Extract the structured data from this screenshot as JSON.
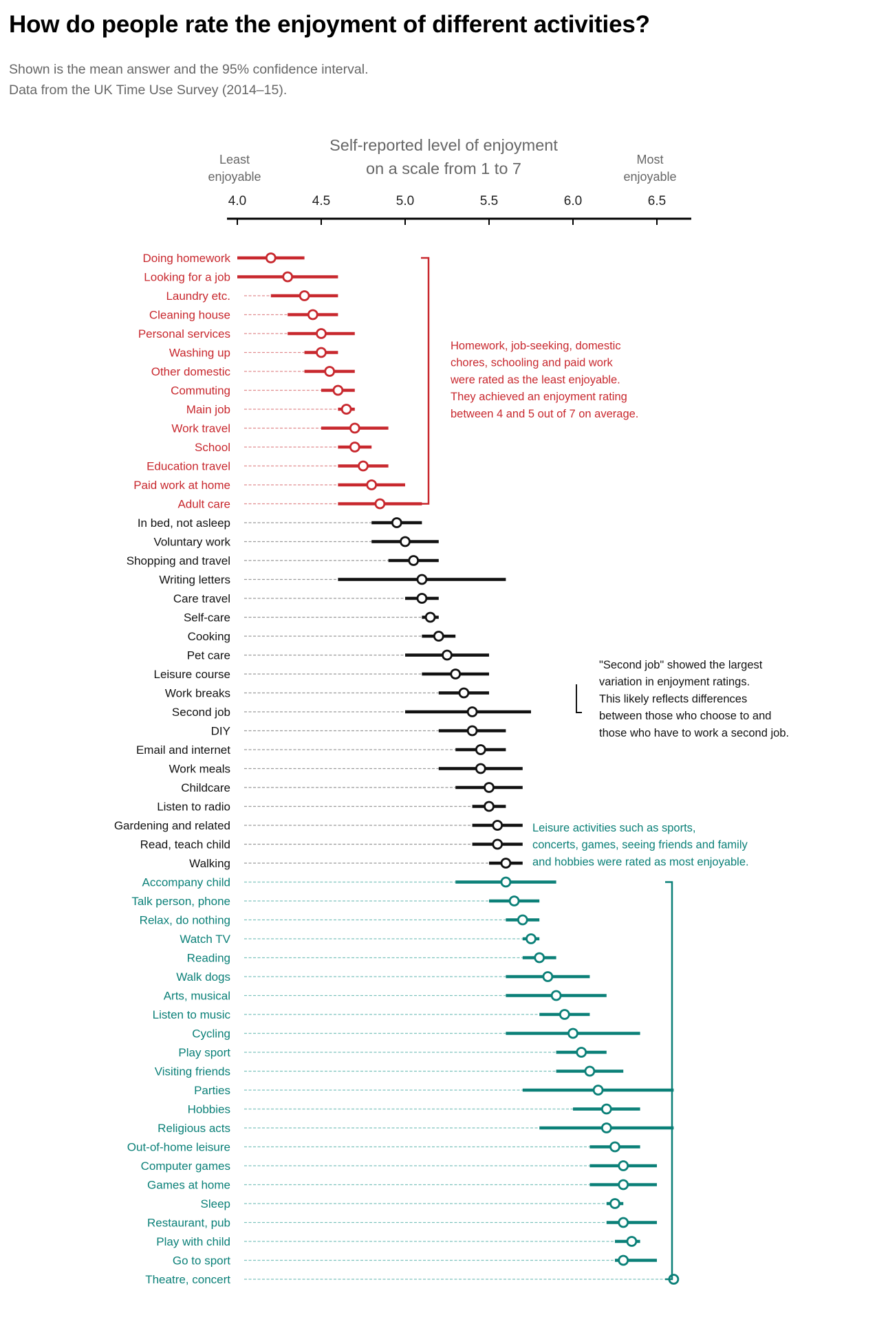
{
  "header": {
    "title": "How do people rate the enjoyment of different activities?",
    "subtitle_lines": [
      "Shown is the mean answer and the 95% confidence interval.",
      "Data from the UK Time Use Survey (2014–15)."
    ]
  },
  "colors": {
    "least": "#c8282e",
    "middle": "#111111",
    "most": "#0b8078",
    "least_dash": "#e08a8d",
    "middle_dash": "#999999",
    "most_dash": "#7cc2bd"
  },
  "chart_data": {
    "type": "dot-interval",
    "title": "How do people rate the enjoyment of different activities?",
    "xlabel": "Self-reported level of enjoyment on a scale from 1 to 7",
    "xlabel_lines": [
      "Self-reported level of enjoyment",
      "on a scale from 1 to 7"
    ],
    "x_low_label": [
      "Least",
      "enjoyable"
    ],
    "x_high_label": [
      "Most",
      "enjoyable"
    ],
    "xlim": [
      4.0,
      6.7
    ],
    "xticks": [
      4.0,
      4.5,
      5.0,
      5.5,
      6.0,
      6.5
    ],
    "xtick_labels": [
      "4.0",
      "4.5",
      "5.0",
      "5.5",
      "6.0",
      "6.5"
    ],
    "axis_position": "top",
    "grid": false,
    "series": [
      {
        "name": "least",
        "points": [
          {
            "label": "Doing homework",
            "mean": 4.2,
            "low": 4.0,
            "high": 4.4
          },
          {
            "label": "Looking for a job",
            "mean": 4.3,
            "low": 4.0,
            "high": 4.6
          },
          {
            "label": "Laundry etc.",
            "mean": 4.4,
            "low": 4.2,
            "high": 4.6
          },
          {
            "label": "Cleaning house",
            "mean": 4.45,
            "low": 4.3,
            "high": 4.6
          },
          {
            "label": "Personal services",
            "mean": 4.5,
            "low": 4.3,
            "high": 4.7
          },
          {
            "label": "Washing up",
            "mean": 4.5,
            "low": 4.4,
            "high": 4.6
          },
          {
            "label": "Other domestic",
            "mean": 4.55,
            "low": 4.4,
            "high": 4.7
          },
          {
            "label": "Commuting",
            "mean": 4.6,
            "low": 4.5,
            "high": 4.7
          },
          {
            "label": "Main job",
            "mean": 4.65,
            "low": 4.6,
            "high": 4.7
          },
          {
            "label": "Work travel",
            "mean": 4.7,
            "low": 4.5,
            "high": 4.9
          },
          {
            "label": "School",
            "mean": 4.7,
            "low": 4.6,
            "high": 4.8
          },
          {
            "label": "Education travel",
            "mean": 4.75,
            "low": 4.6,
            "high": 4.9
          },
          {
            "label": "Paid work at home",
            "mean": 4.8,
            "low": 4.6,
            "high": 5.0
          },
          {
            "label": "Adult care",
            "mean": 4.85,
            "low": 4.6,
            "high": 5.1
          }
        ]
      },
      {
        "name": "middle",
        "points": [
          {
            "label": "In bed, not asleep",
            "mean": 4.95,
            "low": 4.8,
            "high": 5.1
          },
          {
            "label": "Voluntary work",
            "mean": 5.0,
            "low": 4.8,
            "high": 5.2
          },
          {
            "label": "Shopping and travel",
            "mean": 5.05,
            "low": 4.9,
            "high": 5.2
          },
          {
            "label": "Writing letters",
            "mean": 5.1,
            "low": 4.6,
            "high": 5.6
          },
          {
            "label": "Care travel",
            "mean": 5.1,
            "low": 5.0,
            "high": 5.2
          },
          {
            "label": "Self-care",
            "mean": 5.15,
            "low": 5.1,
            "high": 5.2
          },
          {
            "label": "Cooking",
            "mean": 5.2,
            "low": 5.1,
            "high": 5.3
          },
          {
            "label": "Pet care",
            "mean": 5.25,
            "low": 5.0,
            "high": 5.5
          },
          {
            "label": "Leisure course",
            "mean": 5.3,
            "low": 5.1,
            "high": 5.5
          },
          {
            "label": "Work breaks",
            "mean": 5.35,
            "low": 5.2,
            "high": 5.5
          },
          {
            "label": "Second job",
            "mean": 5.4,
            "low": 5.0,
            "high": 5.75
          },
          {
            "label": "DIY",
            "mean": 5.4,
            "low": 5.2,
            "high": 5.6
          },
          {
            "label": "Email and internet",
            "mean": 5.45,
            "low": 5.3,
            "high": 5.6
          },
          {
            "label": "Work meals",
            "mean": 5.45,
            "low": 5.2,
            "high": 5.7
          },
          {
            "label": "Childcare",
            "mean": 5.5,
            "low": 5.3,
            "high": 5.7
          },
          {
            "label": "Listen to radio",
            "mean": 5.5,
            "low": 5.4,
            "high": 5.6
          },
          {
            "label": "Gardening and related",
            "mean": 5.55,
            "low": 5.4,
            "high": 5.7
          },
          {
            "label": "Read, teach child",
            "mean": 5.55,
            "low": 5.4,
            "high": 5.7
          },
          {
            "label": "Walking",
            "mean": 5.6,
            "low": 5.5,
            "high": 5.7
          }
        ]
      },
      {
        "name": "most",
        "points": [
          {
            "label": "Accompany child",
            "mean": 5.6,
            "low": 5.3,
            "high": 5.9
          },
          {
            "label": "Talk person, phone",
            "mean": 5.65,
            "low": 5.5,
            "high": 5.8
          },
          {
            "label": "Relax, do nothing",
            "mean": 5.7,
            "low": 5.6,
            "high": 5.8
          },
          {
            "label": "Watch TV",
            "mean": 5.75,
            "low": 5.7,
            "high": 5.8
          },
          {
            "label": "Reading",
            "mean": 5.8,
            "low": 5.7,
            "high": 5.9
          },
          {
            "label": "Walk dogs",
            "mean": 5.85,
            "low": 5.6,
            "high": 6.1
          },
          {
            "label": "Arts, musical",
            "mean": 5.9,
            "low": 5.6,
            "high": 6.2
          },
          {
            "label": "Listen to music",
            "mean": 5.95,
            "low": 5.8,
            "high": 6.1
          },
          {
            "label": "Cycling",
            "mean": 6.0,
            "low": 5.6,
            "high": 6.4
          },
          {
            "label": "Play sport",
            "mean": 6.05,
            "low": 5.9,
            "high": 6.2
          },
          {
            "label": "Visiting friends",
            "mean": 6.1,
            "low": 5.9,
            "high": 6.3
          },
          {
            "label": "Parties",
            "mean": 6.15,
            "low": 5.7,
            "high": 6.6
          },
          {
            "label": "Hobbies",
            "mean": 6.2,
            "low": 6.0,
            "high": 6.4
          },
          {
            "label": "Religious acts",
            "mean": 6.2,
            "low": 5.8,
            "high": 6.6
          },
          {
            "label": "Out-of-home leisure",
            "mean": 6.25,
            "low": 6.1,
            "high": 6.4
          },
          {
            "label": "Computer games",
            "mean": 6.3,
            "low": 6.1,
            "high": 6.5
          },
          {
            "label": "Games at home",
            "mean": 6.3,
            "low": 6.1,
            "high": 6.5
          },
          {
            "label": "Sleep",
            "mean": 6.25,
            "low": 6.2,
            "high": 6.3
          },
          {
            "label": "Restaurant, pub",
            "mean": 6.3,
            "low": 6.2,
            "high": 6.5
          },
          {
            "label": "Play with child",
            "mean": 6.35,
            "low": 6.25,
            "high": 6.4
          },
          {
            "label": "Go to sport",
            "mean": 6.3,
            "low": 6.25,
            "high": 6.5
          },
          {
            "label": "Theatre, concert",
            "mean": 6.6,
            "low": 6.6,
            "high": 6.6
          }
        ]
      }
    ],
    "annotations": [
      {
        "group": "least",
        "lines": [
          "Homework, job-seeking, domestic",
          "chores, schooling and paid work",
          "were rated as the least enjoyable.",
          "They achieved an enjoyment rating",
          "between 4 and 5 out of 7 on average."
        ]
      },
      {
        "group": "middle",
        "lines": [
          "\"Second job\" showed the largest",
          "variation in enjoyment ratings.",
          "This likely reflects differences",
          "between those who choose to and",
          "those who have to work a second job."
        ]
      },
      {
        "group": "most",
        "lines": [
          "Leisure activities such as sports,",
          "concerts, games, seeing friends and family",
          "and hobbies were rated as most enjoyable."
        ]
      }
    ]
  }
}
